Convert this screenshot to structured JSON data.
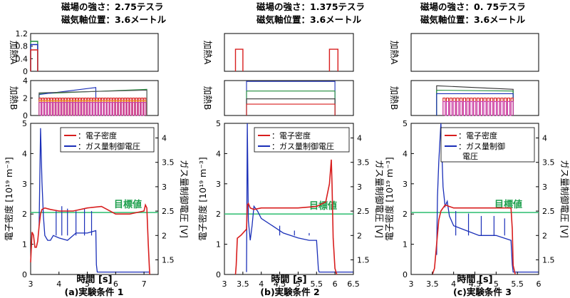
{
  "chart_data": [
    {
      "type": "line",
      "header": [
        "磁場の強さ：2.75テスラ",
        "磁気軸位置：3.6メートル"
      ],
      "caption": "(a)実験条件 1",
      "xlim": [
        3,
        7.5
      ],
      "xticks": [
        "3",
        "4",
        "5",
        "6",
        "7"
      ],
      "xlabel": "時間 [s]",
      "heatingA": {
        "ylabel": "加熱A",
        "ylim": [
          0,
          1.2
        ],
        "yticks": [
          "0",
          "0.4",
          "0.8",
          "1.2"
        ],
        "series": [
          {
            "name": "A-green",
            "color": "#1f8b3a",
            "x": [
              3.0,
              3.0,
              3.25,
              3.25
            ],
            "y": [
              0,
              0.95,
              0.95,
              0
            ]
          },
          {
            "name": "A-blue",
            "color": "#1a2fb8",
            "x": [
              3.0,
              3.0,
              3.25,
              3.25
            ],
            "y": [
              0,
              0.85,
              0.85,
              0
            ]
          },
          {
            "name": "A-red",
            "color": "#d81e1e",
            "x": [
              3.0,
              3.0,
              3.25,
              3.25
            ],
            "y": [
              0,
              0.68,
              0.68,
              0
            ]
          }
        ]
      },
      "heatingB": {
        "ylabel": "加熱B",
        "ylim": [
          0,
          4
        ],
        "yticks": [
          "0",
          "2",
          "4"
        ],
        "series": [
          {
            "name": "B-green",
            "color": "#1f8b3a",
            "x": [
              3.3,
              3.3,
              7.1,
              7.1
            ],
            "y": [
              0,
              2.5,
              3.0,
              0
            ]
          },
          {
            "name": "B-blue",
            "color": "#1a2fb8",
            "x": [
              3.3,
              3.3,
              5.3,
              5.3
            ],
            "y": [
              0,
              2.4,
              3.2,
              0
            ]
          },
          {
            "name": "B-gray",
            "color": "#555555",
            "x": [
              3.3,
              3.3,
              7.1,
              7.1
            ],
            "y": [
              0,
              2.6,
              2.9,
              0
            ]
          },
          {
            "name": "B-modulated-red",
            "color": "#d81e1e",
            "pulsed": true,
            "x_range": [
              3.3,
              7.1
            ],
            "level": 2.0,
            "period": 0.1
          },
          {
            "name": "B-modulated-orange",
            "color": "#e98a1f",
            "pulsed": true,
            "x_range": [
              3.3,
              7.1
            ],
            "level": 1.7,
            "period": 0.1
          },
          {
            "name": "B-modulated-magenta",
            "color": "#c83ab0",
            "pulsed": true,
            "x_range": [
              3.3,
              7.1
            ],
            "level": 1.5,
            "period": 0.1
          }
        ]
      },
      "density": {
        "ylabel": "電子密度 [10¹⁹ m⁻³]",
        "ylim": [
          0,
          5
        ],
        "yticks": [
          "0",
          "1",
          "2",
          "3",
          "4",
          "5"
        ],
        "y2label": "ガス量制御電圧 [V]",
        "y2lim": [
          1.2,
          4.3
        ],
        "y2ticks": [
          "1.5",
          "2",
          "2.5",
          "3",
          "3.5",
          "4"
        ],
        "target_value": 2.05,
        "target_label": "目標値",
        "legend": [
          "：電子密度",
          "：ガス量制御電圧"
        ],
        "electron_density": {
          "x": [
            3.0,
            3.05,
            3.1,
            3.15,
            3.2,
            3.25,
            3.3,
            3.35,
            3.4,
            3.5,
            3.7,
            4.0,
            4.5,
            5.0,
            5.5,
            6.0,
            6.5,
            7.0,
            7.05,
            7.1,
            7.15,
            7.2
          ],
          "y": [
            0.4,
            1.4,
            1.3,
            0.9,
            0.9,
            1.1,
            1.6,
            2.0,
            2.15,
            2.2,
            2.15,
            2.1,
            2.1,
            2.2,
            2.25,
            2.0,
            2.0,
            2.1,
            2.3,
            2.2,
            1.0,
            0.0
          ]
        },
        "gas_voltage": {
          "x": [
            3.3,
            3.35,
            3.4,
            3.45,
            3.5,
            3.6,
            3.7,
            3.8,
            4.0,
            4.3,
            4.6,
            5.0,
            5.3,
            5.32,
            5.35,
            7.2
          ],
          "y": [
            2.2,
            4.2,
            3.1,
            2.4,
            2.0,
            1.9,
            1.9,
            2.0,
            1.95,
            1.9,
            2.05,
            2.05,
            2.1,
            1.4,
            1.25,
            1.25
          ]
        },
        "gas_spikes": {
          "x": [
            3.9,
            4.1,
            4.3,
            4.6,
            4.9,
            5.15
          ],
          "y": [
            2.5,
            2.6,
            2.55,
            2.5,
            2.55,
            2.5
          ]
        }
      }
    },
    {
      "type": "line",
      "header": [
        "磁場の強さ：1.375テスラ",
        "磁気軸位置：3.6メートル"
      ],
      "caption": "(b)実験条件 2",
      "xlim": [
        3,
        6.5
      ],
      "xticks": [
        "3",
        "3.5",
        "4",
        "4.5",
        "5",
        "5.5",
        "6",
        "6.5"
      ],
      "xlabel": "時間 [s]",
      "heatingA": {
        "ylabel": "加熱A",
        "ylim": [
          0,
          1.2
        ],
        "yticks": [],
        "series": [
          {
            "name": "A-red-1",
            "color": "#d81e1e",
            "x": [
              3.3,
              3.3,
              3.5,
              3.5
            ],
            "y": [
              0,
              0.7,
              0.7,
              0
            ]
          },
          {
            "name": "A-red-2",
            "color": "#d81e1e",
            "x": [
              5.85,
              5.85,
              6.08,
              6.08
            ],
            "y": [
              0,
              0.7,
              0.7,
              0
            ]
          }
        ]
      },
      "heatingB": {
        "ylabel": "加熱B",
        "ylim": [
          0,
          4
        ],
        "yticks": [],
        "series": [
          {
            "name": "B-blue",
            "color": "#1a2fb8",
            "x": [
              3.6,
              3.6,
              6.0,
              6.0
            ],
            "y": [
              0,
              3.9,
              3.9,
              0
            ]
          },
          {
            "name": "B-green",
            "color": "#1f8b3a",
            "x": [
              3.6,
              3.6,
              6.0,
              6.0
            ],
            "y": [
              0,
              2.8,
              2.8,
              0
            ]
          },
          {
            "name": "B-dark",
            "color": "#333333",
            "x": [
              3.6,
              3.6,
              6.0,
              6.0
            ],
            "y": [
              0,
              1.9,
              1.9,
              0
            ]
          },
          {
            "name": "B-red",
            "color": "#d81e1e",
            "x": [
              3.6,
              3.6,
              6.0,
              6.0
            ],
            "y": [
              0,
              1.3,
              1.3,
              0
            ]
          }
        ]
      },
      "density": {
        "ylabel": "電子密度 [10¹⁹ m⁻³]",
        "ylim": [
          0,
          5
        ],
        "yticks": [
          "0",
          "1",
          "2",
          "3",
          "4",
          "5"
        ],
        "y2label": "ガス量制御電圧 [V]",
        "y2lim": [
          1.2,
          4.3
        ],
        "y2ticks": [
          "1.5",
          "2",
          "2.5",
          "3",
          "3.5",
          "4"
        ],
        "target_value": 2.0,
        "target_label": "目標値",
        "legend": [
          "：電子密度",
          "：ガス量制御電圧"
        ],
        "electron_density": {
          "x": [
            3.3,
            3.32,
            3.35,
            3.45,
            3.6,
            3.62,
            3.65,
            3.7,
            3.8,
            4.0,
            4.5,
            5.0,
            5.5,
            5.75,
            5.85,
            5.9,
            5.92,
            5.95,
            6.0,
            6.05
          ],
          "y": [
            0.0,
            0.3,
            1.2,
            1.3,
            1.5,
            2.3,
            2.35,
            2.2,
            2.15,
            2.2,
            2.2,
            2.2,
            2.25,
            2.4,
            3.0,
            3.8,
            3.0,
            1.2,
            0.2,
            0.0
          ]
        },
        "gas_voltage": {
          "x": [
            3.6,
            3.62,
            3.65,
            3.7,
            3.75,
            3.8,
            3.9,
            4.0,
            4.3,
            4.6,
            5.0,
            5.3,
            5.5,
            5.55,
            5.57,
            6.5
          ],
          "y": [
            1.25,
            4.3,
            2.3,
            1.9,
            2.2,
            2.6,
            2.5,
            2.35,
            2.2,
            2.05,
            1.95,
            1.9,
            1.9,
            1.3,
            1.25,
            1.25
          ]
        },
        "gas_spikes": {
          "x": [
            4.5,
            4.9,
            5.3
          ],
          "y": [
            2.2,
            2.1,
            2.05
          ]
        }
      }
    },
    {
      "type": "line",
      "header": [
        "磁場の強さ：0. 75テスラ",
        "磁気軸位置：3.6メートル"
      ],
      "caption": "(c)実験条件 3",
      "xlim": [
        3,
        6
      ],
      "xticks": [
        "3",
        "3.5",
        "4",
        "4.5",
        "5",
        "5.5",
        "6"
      ],
      "xlabel": "時間 [s]",
      "heatingA": {
        "ylabel": "加熱A",
        "ylim": [
          0,
          1.2
        ],
        "yticks": [],
        "series": []
      },
      "heatingB": {
        "ylabel": "加熱B",
        "ylim": [
          0,
          4
        ],
        "yticks": [],
        "series": [
          {
            "name": "B-dark",
            "color": "#333333",
            "x": [
              3.6,
              3.6,
              5.4,
              5.4
            ],
            "y": [
              0,
              3.4,
              3.0,
              0
            ]
          },
          {
            "name": "B-green",
            "color": "#1f8b3a",
            "x": [
              3.6,
              3.6,
              5.4,
              5.4
            ],
            "y": [
              0,
              2.9,
              2.8,
              0
            ]
          },
          {
            "name": "B-blue",
            "color": "#1a2fb8",
            "x": [
              3.6,
              3.6,
              5.4,
              5.4
            ],
            "y": [
              0,
              2.5,
              2.5,
              0
            ]
          },
          {
            "name": "B-modulated-red",
            "color": "#d81e1e",
            "pulsed": true,
            "x_range": [
              3.75,
              5.4
            ],
            "level": 2.0,
            "period": 0.08
          },
          {
            "name": "B-modulated-magenta",
            "color": "#c83ab0",
            "pulsed": true,
            "x_range": [
              3.75,
              5.4
            ],
            "level": 1.6,
            "period": 0.08
          }
        ]
      },
      "density": {
        "ylabel": "電子密度 [10¹⁹ m⁻³]",
        "ylim": [
          0,
          5
        ],
        "yticks": [
          "0",
          "1",
          "2",
          "3",
          "4",
          "5"
        ],
        "y2label": "ガス量制御電圧 [V]",
        "y2lim": [
          1.2,
          4.3
        ],
        "y2ticks": [
          "1.5",
          "2",
          "2.5",
          "3",
          "3.5",
          "4"
        ],
        "target_value": 2.05,
        "target_label": "目標値",
        "legend": [
          "：電子密度",
          "：ガス量制御",
          "電圧"
        ],
        "electron_density": {
          "x": [
            3.5,
            3.55,
            3.6,
            3.65,
            3.7,
            3.75,
            3.8,
            3.9,
            4.0,
            4.5,
            5.0,
            5.35,
            5.38,
            5.4,
            5.45
          ],
          "y": [
            0.0,
            0.2,
            1.0,
            1.8,
            2.1,
            2.2,
            2.3,
            2.25,
            2.2,
            2.2,
            2.2,
            2.2,
            1.5,
            0.3,
            0.0
          ]
        },
        "gas_voltage": {
          "x": [
            3.6,
            3.62,
            3.65,
            3.7,
            3.75,
            3.8,
            3.85,
            3.9,
            4.0,
            4.3,
            4.6,
            5.0,
            5.35,
            5.38,
            5.4,
            6.0
          ],
          "y": [
            1.6,
            2.8,
            3.5,
            4.3,
            3.0,
            2.6,
            2.7,
            2.4,
            2.2,
            2.1,
            2.0,
            2.0,
            1.9,
            1.4,
            1.25,
            1.25
          ]
        },
        "gas_spikes": {
          "x": [
            4.05,
            4.35,
            4.65,
            4.95,
            5.2
          ],
          "y": [
            2.5,
            2.45,
            2.4,
            2.4,
            2.35
          ]
        }
      }
    }
  ]
}
